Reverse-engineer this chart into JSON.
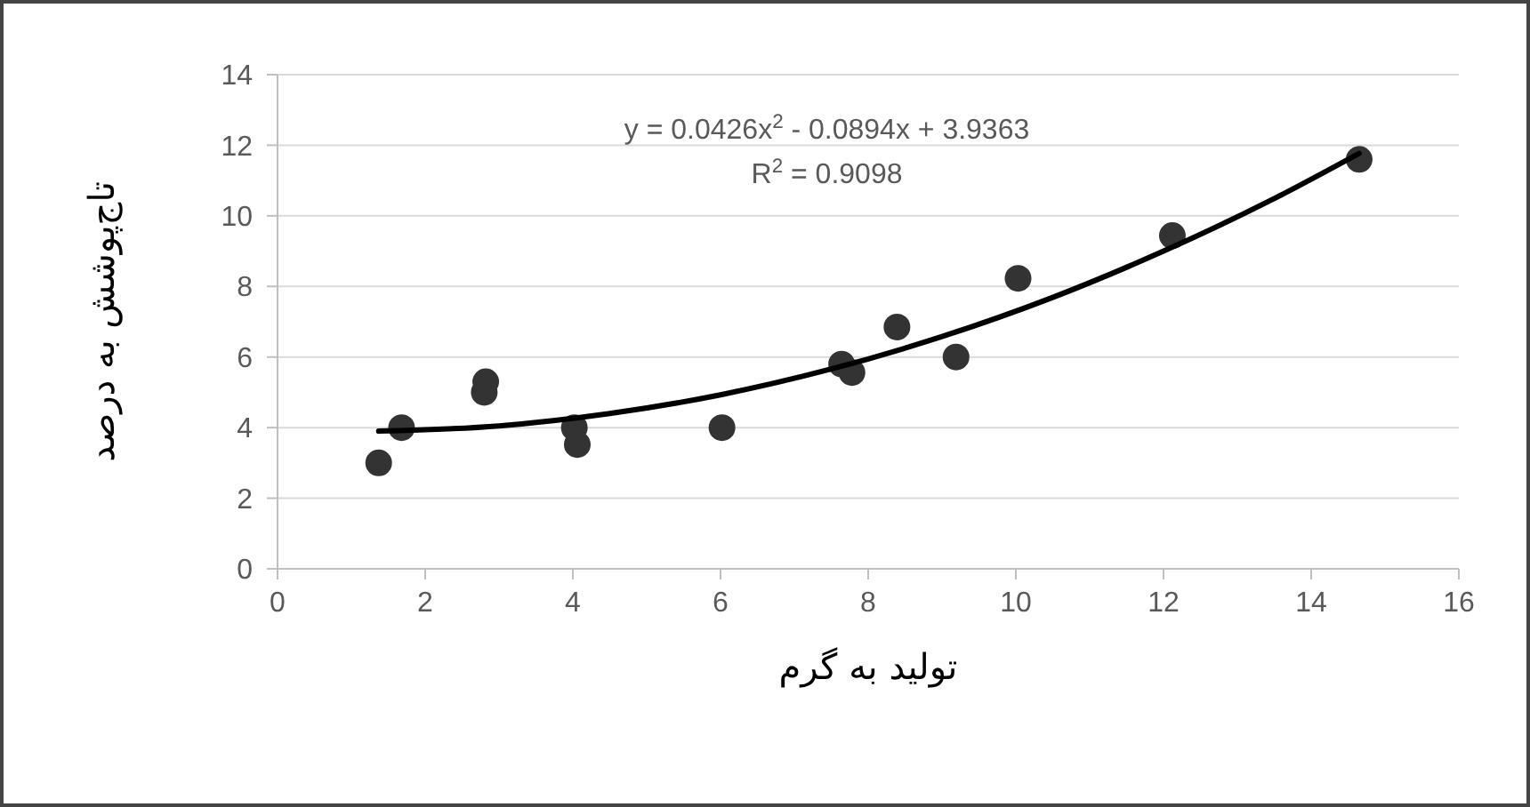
{
  "chart_data": {
    "type": "scatter",
    "xlabel": "تولید به گرم",
    "ylabel": "تاج‌پوشش به درصد",
    "xlim": [
      0,
      16
    ],
    "xticks": [
      0,
      2,
      4,
      6,
      8,
      10,
      12,
      14,
      16
    ],
    "ylim": [
      0,
      14
    ],
    "yticks": [
      0,
      2,
      4,
      6,
      8,
      10,
      12,
      14
    ],
    "grid": "y",
    "series": [
      {
        "color": "#333333",
        "marker": "circle",
        "x": [
          1.37,
          1.68,
          2.8,
          2.82,
          4.02,
          4.06,
          6.02,
          7.64,
          7.78,
          8.39,
          9.19,
          10.03,
          12.12,
          14.65
        ],
        "values": [
          3.0,
          4.0,
          5.0,
          5.3,
          4.0,
          3.52,
          4.0,
          5.8,
          5.56,
          6.85,
          6.0,
          8.23,
          9.44,
          11.6
        ]
      },
      {
        "type": "line",
        "color": "#000000",
        "marker": "none",
        "line_style": "solid",
        "x": [
          1.37,
          3,
          4.5,
          6,
          7.5,
          9,
          10.5,
          12,
          13.5,
          14.65
        ],
        "values": [
          3.9,
          4.05,
          4.4,
          4.93,
          5.66,
          6.58,
          7.69,
          9.0,
          10.49,
          11.77
        ]
      }
    ],
    "annotations": [
      "y = 0.0426x$^{2}$ - 0.0894x + 3.9363",
      "R$^{2}$ = 0.9098"
    ]
  }
}
